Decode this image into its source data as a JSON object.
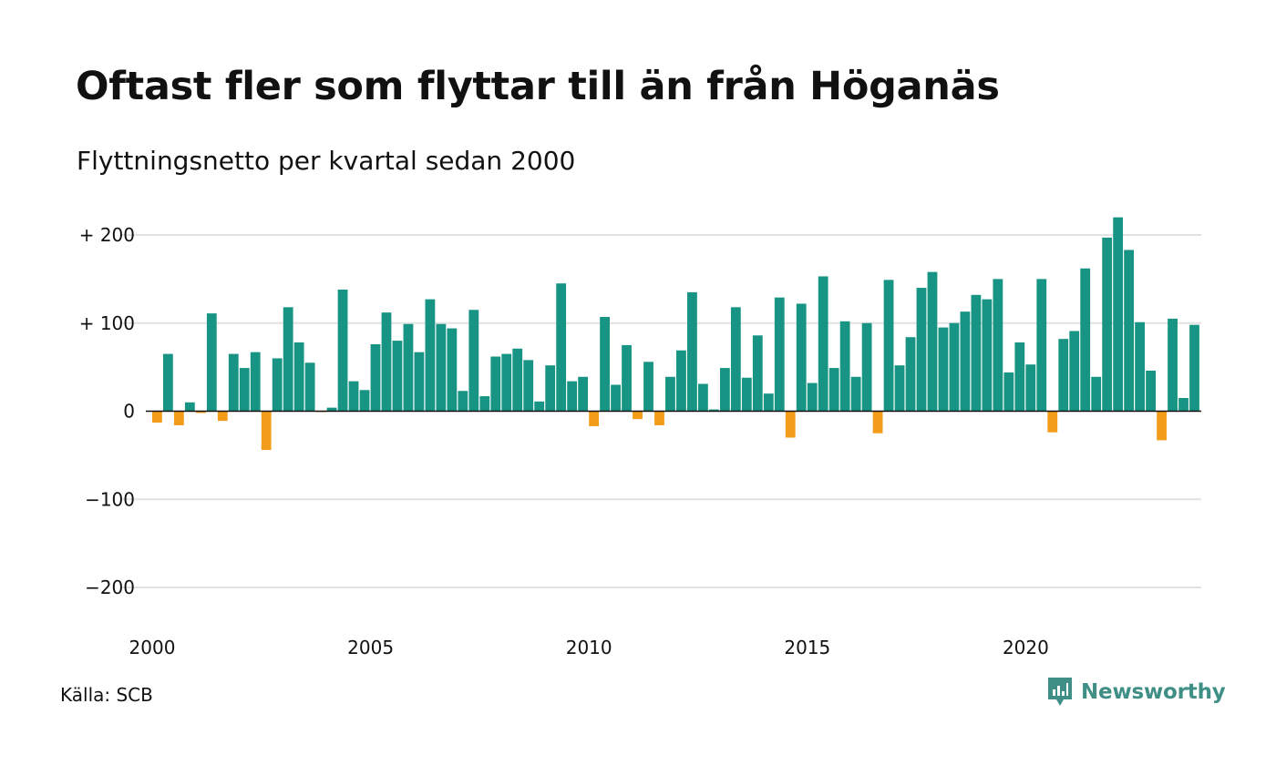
{
  "title": "Oftast fler som flyttar till än från Höganäs",
  "subtitle": "Flyttningsnetto per kvartal sedan 2000",
  "source": "Källa: SCB",
  "brand": "Newsworthy",
  "colors": {
    "positive": "#179484",
    "negative": "#f39c1a",
    "grid": "#e2e2e2",
    "axis": "#111111",
    "brand": "#3f8f86"
  },
  "chart_data": {
    "type": "bar",
    "title": "Oftast fler som flyttar till än från Höganäs",
    "subtitle": "Flyttningsnetto per kvartal sedan 2000",
    "ylim": [
      -200,
      200
    ],
    "y_ticks": [
      {
        "value": 200,
        "label": "+ 200"
      },
      {
        "value": 100,
        "label": "+ 100"
      },
      {
        "value": 0,
        "label": "0"
      },
      {
        "value": -100,
        "label": "−100"
      },
      {
        "value": -200,
        "label": "−200"
      }
    ],
    "x_ticks": [
      "2000",
      "2005",
      "2010",
      "2015",
      "2020"
    ],
    "grid": true,
    "start": "2000 Q1",
    "frequency": "quarterly",
    "values": [
      -13,
      65,
      -16,
      10,
      -2,
      111,
      -11,
      65,
      49,
      67,
      -44,
      60,
      118,
      78,
      55,
      -1,
      4,
      138,
      34,
      24,
      76,
      112,
      80,
      99,
      67,
      127,
      99,
      94,
      23,
      115,
      17,
      62,
      65,
      71,
      58,
      11,
      52,
      145,
      34,
      39,
      -17,
      107,
      30,
      75,
      -9,
      56,
      -16,
      39,
      69,
      135,
      31,
      2,
      49,
      118,
      38,
      86,
      20,
      129,
      -30,
      122,
      32,
      153,
      49,
      102,
      39,
      100,
      -25,
      149,
      52,
      84,
      140,
      158,
      95,
      100,
      113,
      132,
      127,
      150,
      44,
      78,
      53,
      150,
      -24,
      82,
      91,
      162,
      39,
      197,
      220,
      183,
      101,
      46,
      -33,
      105,
      15,
      98
    ]
  }
}
